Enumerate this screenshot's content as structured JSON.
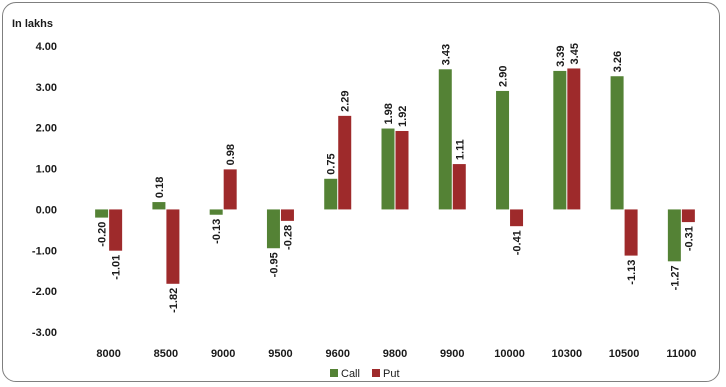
{
  "chart_data": {
    "type": "bar",
    "unit_label": "In lakhs",
    "categories": [
      "8000",
      "8500",
      "9000",
      "9500",
      "9600",
      "9800",
      "9900",
      "10000",
      "10300",
      "10500",
      "11000"
    ],
    "series": [
      {
        "name": "Call",
        "color": "#548235",
        "values": [
          -0.2,
          0.18,
          -0.13,
          -0.95,
          0.75,
          1.98,
          3.43,
          2.9,
          3.39,
          3.26,
          -1.27
        ],
        "labels": [
          "-0.20",
          "0.18",
          "-0.13",
          "-0.95",
          "0.75",
          "1.98",
          "3.43",
          "2.90",
          "3.39",
          "3.26",
          "-1.27"
        ]
      },
      {
        "name": "Put",
        "color": "#9e2a2b",
        "values": [
          -1.01,
          -1.82,
          0.98,
          -0.28,
          2.29,
          1.92,
          1.11,
          -0.41,
          3.45,
          -1.13,
          -0.31
        ],
        "labels": [
          "-1.01",
          "-1.82",
          "0.98",
          "-0.28",
          "2.29",
          "1.92",
          "1.11",
          "-0.41",
          "3.45",
          "-1.13",
          "-0.31"
        ]
      }
    ],
    "ylim": [
      -3,
      4
    ],
    "yticks": [
      4,
      3,
      2,
      1,
      0,
      -1,
      -2,
      -3
    ],
    "ytick_labels": [
      "4.00",
      "3.00",
      "2.00",
      "1.00",
      "0.00",
      "-1.00",
      "-2.00",
      "-3.00"
    ],
    "grid": false,
    "legend_position": "bottom-center",
    "xlabel": "",
    "ylabel": ""
  }
}
